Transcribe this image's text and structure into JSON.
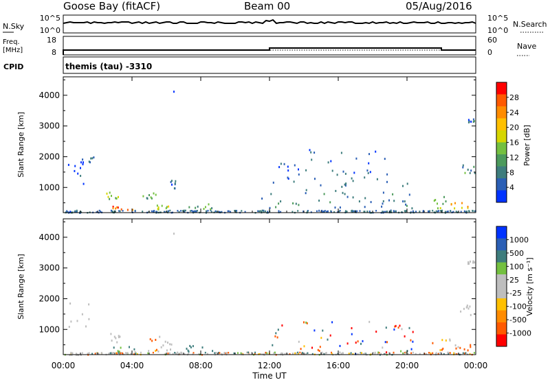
{
  "header": {
    "station": "Goose Bay (fitACF)",
    "beam": "Beam 00",
    "date": "05/Aug/2016"
  },
  "status_panels": {
    "nsky_label": "N.Sky",
    "nsky_ticks": [
      "10^5",
      "10^0"
    ],
    "nsearch_label": "N.Search",
    "nsearch_ticks": [
      "10^5",
      "10^0"
    ],
    "freq_label_line1": "Freq.",
    "freq_label_line2": "[MHz]",
    "freq_ticks": [
      "18",
      "8"
    ],
    "nave_label": "Nave",
    "nave_ticks": [
      "60",
      "0"
    ],
    "cpid_label": "CPID",
    "cpid_text": "themis (tau) -3310"
  },
  "axes": {
    "time_label": "Time UT",
    "time_ticks": [
      "00:00",
      "04:00",
      "08:00",
      "12:00",
      "16:00",
      "20:00",
      "00:00"
    ],
    "range_label": "Slant Range [km]",
    "range_ticks": [
      "4000",
      "3000",
      "2000",
      "1000"
    ]
  },
  "colors": {
    "grey_ground_scatter": "#bebebe",
    "power_scale": [
      "#0033ff",
      "#2b5fb5",
      "#3e7d7d",
      "#4c9a5c",
      "#74c040",
      "#d6d600",
      "#ffc000",
      "#ff8c00",
      "#ff5a00",
      "#ff0000"
    ],
    "velocity_scale": [
      "#ff0000",
      "#ff5a00",
      "#ff8c00",
      "#ffc000",
      "#bebebe",
      "#bebebe",
      "#74c040",
      "#3e7d7d",
      "#2b5fb5",
      "#0033ff"
    ]
  },
  "colorbars": {
    "power": {
      "label": "Power [dB]",
      "ticks": [
        "28",
        "24",
        "20",
        "16",
        "12",
        "8",
        "4"
      ]
    },
    "velocity": {
      "label": "Velocity [m s⁻¹]",
      "ticks": [
        "1000",
        "500",
        "100",
        "25",
        "-25",
        "-100",
        "-500",
        "-1000"
      ]
    }
  },
  "chart_data": [
    {
      "type": "heatmap",
      "title": "",
      "xlabel": "Time UT",
      "ylabel": "Slant Range [km]",
      "xlim": [
        0,
        24
      ],
      "ylim": [
        180,
        4600
      ],
      "colorbar_label": "Power [dB]",
      "colorbar_range": [
        0,
        30
      ],
      "clusters": [
        {
          "t0": 0.3,
          "t1": 1.0,
          "r0": 200,
          "r1": 300,
          "value": 6
        },
        {
          "t0": 0.2,
          "t1": 1.5,
          "r0": 1100,
          "r1": 1900,
          "value": 5
        },
        {
          "t0": 1.0,
          "t1": 2.0,
          "r0": 1850,
          "r1": 2050,
          "value": 5
        },
        {
          "t0": 2.4,
          "t1": 3.3,
          "r0": 650,
          "r1": 900,
          "value": 14
        },
        {
          "t0": 2.8,
          "t1": 4.2,
          "r0": 280,
          "r1": 500,
          "value": 24
        },
        {
          "t0": 4.6,
          "t1": 5.4,
          "r0": 650,
          "r1": 850,
          "value": 10
        },
        {
          "t0": 5.4,
          "t1": 6.3,
          "r0": 300,
          "r1": 500,
          "value": 16
        },
        {
          "t0": 6.2,
          "t1": 6.5,
          "r0": 1000,
          "r1": 1250,
          "value": 6
        },
        {
          "t0": 7.0,
          "t1": 9.0,
          "r0": 300,
          "r1": 500,
          "value": 10
        },
        {
          "t0": 11.5,
          "t1": 20.5,
          "r0": 250,
          "r1": 1300,
          "value": 7
        },
        {
          "t0": 12.5,
          "t1": 19.0,
          "r0": 1300,
          "r1": 2300,
          "value": 5
        },
        {
          "t0": 21.3,
          "t1": 22.3,
          "r0": 350,
          "r1": 750,
          "value": 12
        },
        {
          "t0": 22.5,
          "t1": 23.7,
          "r0": 350,
          "r1": 550,
          "value": 20
        },
        {
          "t0": 23.2,
          "t1": 23.95,
          "r0": 1500,
          "r1": 1850,
          "value": 9
        },
        {
          "t0": 23.5,
          "t1": 23.9,
          "r0": 3150,
          "r1": 3250,
          "value": 6
        }
      ]
    },
    {
      "type": "heatmap",
      "title": "",
      "xlabel": "Time UT",
      "ylabel": "Slant Range [km]",
      "xlim": [
        0,
        24
      ],
      "ylim": [
        180,
        4600
      ],
      "colorbar_label": "Velocity [m s⁻¹]",
      "colorbar_range": [
        -1000,
        1000
      ],
      "clusters": [
        {
          "t0": 0.3,
          "t1": 1.0,
          "r0": 200,
          "r1": 300,
          "value": 0,
          "ground": true
        },
        {
          "t0": 0.2,
          "t1": 1.5,
          "r0": 1100,
          "r1": 1900,
          "value": 0,
          "ground": true
        },
        {
          "t0": 2.4,
          "t1": 3.3,
          "r0": 600,
          "r1": 900,
          "value": 0,
          "ground": true
        },
        {
          "t0": 2.8,
          "t1": 4.2,
          "r0": 280,
          "r1": 500,
          "value": 150
        },
        {
          "t0": 4.6,
          "t1": 5.6,
          "r0": 300,
          "r1": 800,
          "value": -150
        },
        {
          "t0": 5.6,
          "t1": 6.4,
          "r0": 300,
          "r1": 650,
          "value": 0,
          "ground": true
        },
        {
          "t0": 7.0,
          "t1": 9.0,
          "r0": 250,
          "r1": 500,
          "value": 200
        },
        {
          "t0": 11.5,
          "t1": 20.5,
          "r0": 230,
          "r1": 1300,
          "value": "mixed"
        },
        {
          "t0": 21.3,
          "t1": 22.5,
          "r0": 350,
          "r1": 750,
          "value": -120
        },
        {
          "t0": 22.5,
          "t1": 23.7,
          "r0": 350,
          "r1": 550,
          "value": -200
        },
        {
          "t0": 23.0,
          "t1": 23.95,
          "r0": 1500,
          "r1": 1850,
          "value": 0,
          "ground": true
        },
        {
          "t0": 23.5,
          "t1": 23.9,
          "r0": 3150,
          "r1": 3250,
          "value": 0,
          "ground": true
        }
      ]
    }
  ]
}
